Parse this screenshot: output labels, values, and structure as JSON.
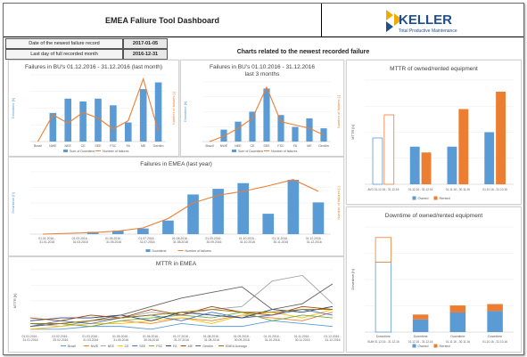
{
  "header": {
    "title": "EMEA Faliure Tool Dashboard",
    "logo_name": "KELLER",
    "logo_tagline": "Total Productive Maintenance",
    "newest_label": "Date of the newest failure record",
    "newest_value": "2017-01-05",
    "last_day_label": "Last day of full recorded month",
    "last_day_value": "2016-12-31",
    "headline": "Charts related to the newest recorded failure"
  },
  "colors": {
    "bar": "#5b9bd5",
    "line": "#ed7d31",
    "owned": "#5b9bd5",
    "rented": "#ed7d31"
  },
  "chart_data": [
    {
      "id": "bu_last_month",
      "type": "bar",
      "title": "Failures in BU's 01.12.2016 - 31.12.2016 (last month)",
      "categories": [
        "Brazil",
        "NWE",
        "NEE",
        "CE",
        "SEE",
        "FSC",
        "FA",
        "ME",
        "Gerdim"
      ],
      "series": [
        {
          "name": "Sum of Downtime",
          "type": "bar",
          "axis": "left",
          "values": [
            0,
            30,
            45,
            42,
            45,
            38,
            20,
            55,
            62
          ]
        },
        {
          "name": "Number of failures",
          "type": "line",
          "axis": "right",
          "values": [
            0,
            32,
            22,
            35,
            28,
            15,
            25,
            75,
            12
          ]
        }
      ],
      "ylim": [
        0,
        70
      ],
      "y2lim": [
        0,
        80
      ],
      "ylabel": "Downtime [h]",
      "y2label": "Number of failures [-]"
    },
    {
      "id": "bu_last_3_months",
      "type": "bar",
      "title": "Failures in BU's 01.10.2016 - 31.12.2016 last 3 months",
      "categories": [
        "Brazil",
        "NWE",
        "NEE",
        "CE",
        "SEE",
        "FSC",
        "FA",
        "ME",
        "Gerdim"
      ],
      "series": [
        {
          "name": "Sum of Downtime",
          "type": "bar",
          "axis": "left",
          "values": [
            0,
            18,
            30,
            45,
            80,
            40,
            22,
            35,
            20
          ]
        },
        {
          "name": "Number of failures",
          "type": "line",
          "axis": "right",
          "values": [
            0,
            8,
            20,
            35,
            82,
            30,
            25,
            20,
            10
          ]
        }
      ],
      "ylim": [
        0,
        90
      ],
      "y2lim": [
        0,
        90
      ],
      "ylabel": "Downtime [h]",
      "y2label": "Number of failures [-]"
    },
    {
      "id": "emea_last_year",
      "type": "bar",
      "title": "Failures in EMEA (last year)",
      "categories": [
        "01.01.2016 - 31.01.2016",
        "01.02.2016 - 29.02.2016",
        "01.03.2016 - 31.03.2016",
        "01.04.2016 - 30.04.2016",
        "01.05.2016 - 31.05.2016",
        "01.06.2016 - 30.06.2016",
        "01.07.2016 - 31.07.2016",
        "01.08.2016 - 31.08.2016",
        "01.09.2016 - 30.09.2016",
        "01.10.2016 - 31.10.2016",
        "01.11.2016 - 30.11.2016",
        "01.12.2016 - 31.12.2016"
      ],
      "tick_labels": [
        "01.01.2016 - 31.01.2016",
        "01.03.2016 - 31.03.2016",
        "01.05.2016 - 31.05.2016",
        "01.07.2016 - 31.07.2016",
        "01.08.2016 - 31.08.2016",
        "01.09.2016 - 30.09.2016",
        "01.10.2016 - 31.10.2016",
        "01.11.2016 - 30.11.2016",
        "01.12.2016 - 31.12.2016"
      ],
      "series": [
        {
          "name": "Downtime",
          "type": "bar",
          "axis": "left",
          "values": [
            0,
            0,
            2,
            3,
            5,
            12,
            35,
            40,
            45,
            18,
            48,
            28
          ]
        },
        {
          "name": "Number of failures",
          "type": "line",
          "axis": "right",
          "values": [
            0,
            1,
            2,
            4,
            8,
            20,
            40,
            50,
            55,
            62,
            70,
            55
          ]
        }
      ],
      "ylim": [
        0,
        55
      ],
      "y2lim": [
        0,
        80
      ],
      "ylabel": "Downtime [h]",
      "y2label": "Number of failures [-]"
    },
    {
      "id": "mttr_emea",
      "type": "line",
      "title": "MTTR in EMEA",
      "tick_labels": [
        "01.01.2016 - 31.01.2016",
        "01.02.2016 - 29.02.2016",
        "01.03.2016 - 31.03.2016",
        "01.05.2016 - 31.05.2016",
        "01.06.2016 - 30.06.2016",
        "01.07.2016 - 31.07.2016",
        "01.08.2016 - 31.08.2016",
        "01.09.2016 - 30.09.2016",
        "01.10.2016 - 31.10.2016",
        "01.11.2016 - 30.11.2016",
        "01.12.2016 - 31.12.2016"
      ],
      "series": [
        {
          "name": "Brazil",
          "color": "#5b9bd5",
          "values": [
            1,
            1,
            2,
            2,
            1,
            3,
            2,
            2,
            4,
            3,
            2
          ]
        },
        {
          "name": "NWE",
          "color": "#ed7d31",
          "values": [
            2,
            3,
            2,
            4,
            3,
            5,
            4,
            6,
            5,
            4,
            7
          ]
        },
        {
          "name": "NEE",
          "color": "#a5a5a5",
          "values": [
            3,
            2,
            4,
            5,
            7,
            6,
            8,
            9,
            18,
            20,
            10
          ]
        },
        {
          "name": "CE",
          "color": "#ffc000",
          "values": [
            1,
            2,
            3,
            3,
            4,
            5,
            3,
            6,
            7,
            5,
            8
          ]
        },
        {
          "name": "SEE",
          "color": "#4472c4",
          "values": [
            2,
            4,
            3,
            5,
            6,
            4,
            7,
            5,
            6,
            8,
            6
          ]
        },
        {
          "name": "FSC",
          "color": "#70ad47",
          "values": [
            3,
            3,
            2,
            4,
            5,
            6,
            5,
            7,
            4,
            6,
            5
          ]
        },
        {
          "name": "FA",
          "color": "#264478",
          "values": [
            4,
            5,
            5,
            6,
            4,
            7,
            6,
            5,
            8,
            7,
            9
          ]
        },
        {
          "name": "ME",
          "color": "#9e480e",
          "values": [
            5,
            4,
            6,
            5,
            8,
            6,
            9,
            7,
            6,
            9,
            8
          ]
        },
        {
          "name": "Gerdim",
          "color": "#636363",
          "values": [
            2,
            3,
            4,
            6,
            9,
            12,
            14,
            16,
            8,
            10,
            17
          ]
        },
        {
          "name": "EMEA Average",
          "color": "#997300",
          "values": [
            3,
            3,
            4,
            5,
            6,
            7,
            8,
            7,
            7,
            8,
            8
          ]
        }
      ],
      "ylim": [
        0,
        22
      ],
      "ylabel": "MTTR [h]"
    },
    {
      "id": "mttr_owned_rented",
      "type": "bar",
      "title": "MTTR of owned/rented equipment",
      "categories": [
        "AVG 01.12.16 - 31.12.16",
        "01.12.16 - 31.12.16",
        "01.11.16 - 30.11.16",
        "01.10.16 - 31.10.16"
      ],
      "series": [
        {
          "name": "Owned",
          "values": [
            8,
            6.5,
            6.5,
            9
          ]
        },
        {
          "name": "Rented",
          "values": [
            12,
            5.5,
            13,
            16
          ]
        }
      ],
      "first_group_outline": true,
      "ylim": [
        0,
        18
      ],
      "ylabel": "MTTR [h]"
    },
    {
      "id": "downtime_owned_rented",
      "type": "bar",
      "title": "Downtime of owned/rented equipment",
      "categories": [
        "SUM 01.12.16 - 31.12.16",
        "01.12.16 - 31.12.16",
        "01.11.16 - 30.11.16",
        "01.10.16 - 31.10.16"
      ],
      "group_label": "Downtime",
      "series": [
        {
          "name": "Owned",
          "values": [
            100,
            18,
            28,
            30
          ]
        },
        {
          "name": "Rented",
          "values": [
            35,
            7,
            10,
            10
          ]
        }
      ],
      "stacked": true,
      "first_group_outline": true,
      "ylim": [
        0,
        150
      ],
      "ylabel": "Downtime [h]"
    }
  ]
}
